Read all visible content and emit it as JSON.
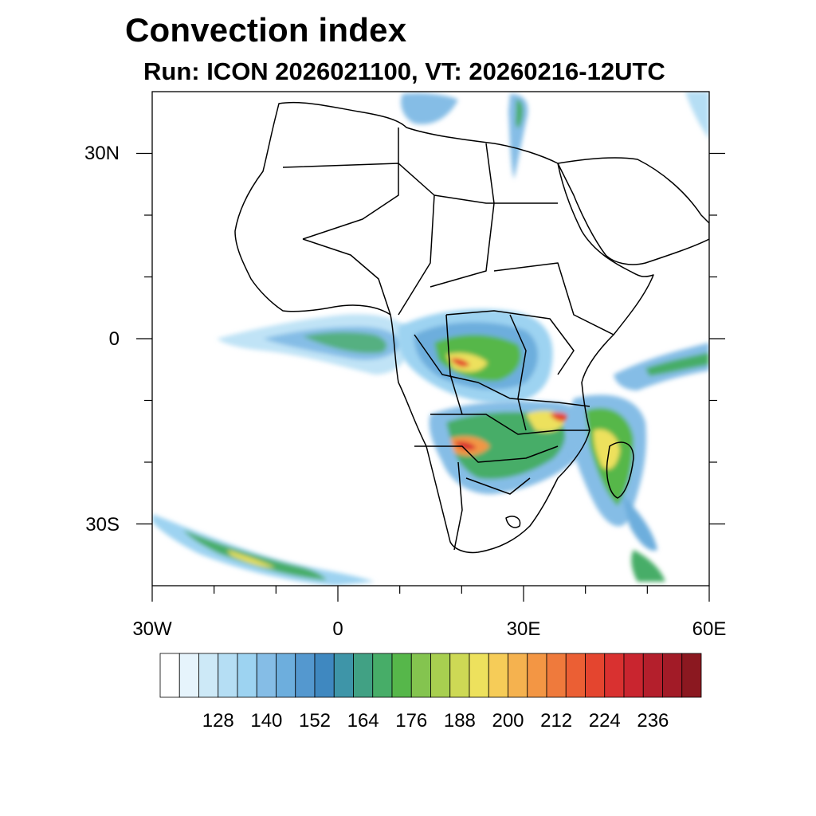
{
  "title": "Convection index",
  "subtitle": "Run: ICON 2026021100,  VT: 20260216-12UTC",
  "map": {
    "region": "Africa",
    "lon_range": [
      -30,
      60
    ],
    "lat_range": [
      -40,
      40
    ],
    "lon_ticks": [
      {
        "value": -30,
        "label": "30W"
      },
      {
        "value": 0,
        "label": "0"
      },
      {
        "value": 30,
        "label": "30E"
      },
      {
        "value": 60,
        "label": "60E"
      }
    ],
    "lat_ticks": [
      {
        "value": 30,
        "label": "30N"
      },
      {
        "value": 0,
        "label": "0"
      },
      {
        "value": -30,
        "label": "30S"
      }
    ]
  },
  "colorbar": {
    "colors": [
      "#ffffff",
      "#e6f4fc",
      "#cde9f7",
      "#b5def4",
      "#9dd3f1",
      "#85bde6",
      "#6daedd",
      "#5498cf",
      "#3f88c0",
      "#3e95a8",
      "#41a184",
      "#47ad68",
      "#56b74a",
      "#84c44f",
      "#a8cf50",
      "#cdd955",
      "#ede15d",
      "#f6cc58",
      "#f5b24f",
      "#f39644",
      "#ef7a3c",
      "#eb5f34",
      "#e4452f",
      "#d93130",
      "#c9252f",
      "#b41f2c",
      "#a21b27",
      "#8b1820"
    ],
    "tick_labels": [
      "128",
      "140",
      "152",
      "164",
      "176",
      "188",
      "200",
      "212",
      "224",
      "236"
    ]
  }
}
